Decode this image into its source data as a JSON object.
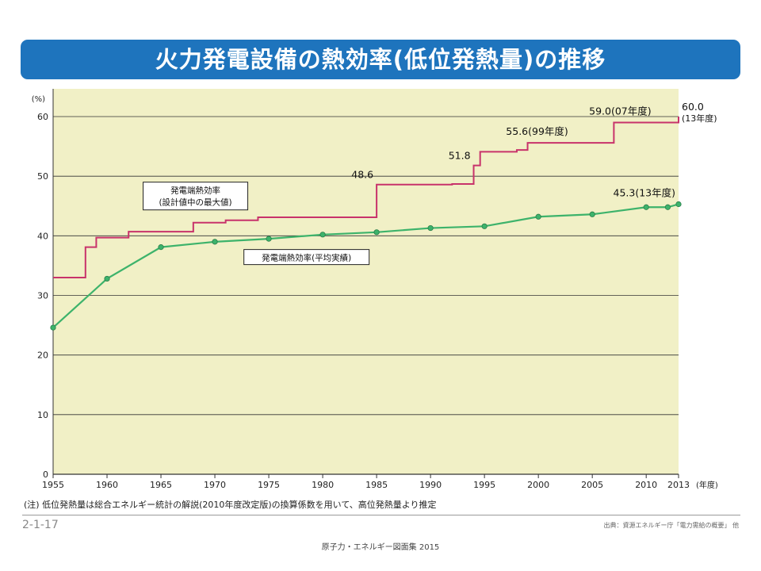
{
  "slide": {
    "title": "火力発電設備の熱効率(低位発熱量)の推移",
    "note": "(注) 低位発熱量は総合エネルギー統計の解説(2010年度改定版)の換算係数を用いて、高位発熱量より推定",
    "page_code": "2-1-17",
    "source": "出典：資源エネルギー庁「電力需給の概要」 他",
    "footer": "原子力・エネルギー図面集 2015"
  },
  "colors": {
    "banner": "#1e74bd",
    "plot_bg": "#f1f0c6",
    "design_line": "#c8336b",
    "actual_line": "#3db36b",
    "grid": "#333333"
  },
  "chart_data": {
    "type": "line",
    "y_unit_label": "(%)",
    "x_unit_label": "(年度)",
    "xlim": [
      1955,
      2013
    ],
    "ylim": [
      0,
      60
    ],
    "x_ticks": [
      1955,
      1960,
      1965,
      1970,
      1975,
      1980,
      1985,
      1990,
      1995,
      2000,
      2005,
      2010,
      2013
    ],
    "y_ticks": [
      0,
      10,
      20,
      30,
      40,
      50,
      60
    ],
    "grid": "horizontal",
    "series": [
      {
        "name": "発電端熱効率(設計値中の最大値)",
        "style": "step",
        "label_lines": [
          "発電端熱効率",
          "(設計値中の最大値)"
        ],
        "points": [
          [
            1955,
            33.0
          ],
          [
            1958,
            33.0
          ],
          [
            1958,
            38.1
          ],
          [
            1959,
            38.1
          ],
          [
            1959,
            39.7
          ],
          [
            1962,
            39.7
          ],
          [
            1962,
            40.7
          ],
          [
            1968,
            40.7
          ],
          [
            1968,
            42.2
          ],
          [
            1971,
            42.2
          ],
          [
            1971,
            42.6
          ],
          [
            1974,
            42.6
          ],
          [
            1974,
            43.1
          ],
          [
            1985,
            43.1
          ],
          [
            1985,
            48.6
          ],
          [
            1992,
            48.6
          ],
          [
            1992,
            48.7
          ],
          [
            1994,
            48.7
          ],
          [
            1994,
            51.8
          ],
          [
            1994.6,
            51.8
          ],
          [
            1994.6,
            54.1
          ],
          [
            1998,
            54.1
          ],
          [
            1998,
            54.4
          ],
          [
            1999,
            54.4
          ],
          [
            1999,
            55.6
          ],
          [
            2007,
            55.6
          ],
          [
            2007,
            59.0
          ],
          [
            2013,
            59.0
          ],
          [
            2013,
            60.0
          ]
        ]
      },
      {
        "name": "発電端熱効率(平均実績)",
        "style": "line-markers",
        "label_lines": [
          "発電端熱効率(平均実績)"
        ],
        "points": [
          [
            1955,
            24.6
          ],
          [
            1960,
            32.8
          ],
          [
            1965,
            38.1
          ],
          [
            1970,
            39.0
          ],
          [
            1975,
            39.5
          ],
          [
            1980,
            40.2
          ],
          [
            1985,
            40.6
          ],
          [
            1990,
            41.3
          ],
          [
            1995,
            41.6
          ],
          [
            2000,
            43.2
          ],
          [
            2005,
            43.6
          ],
          [
            2010,
            44.8
          ],
          [
            2012,
            44.8
          ],
          [
            2013,
            45.3
          ]
        ]
      }
    ],
    "annotations": [
      {
        "text": "48.6",
        "x": 1985,
        "y": 48.6,
        "series": 0
      },
      {
        "text": "51.8",
        "x": 1994,
        "y": 51.8,
        "series": 0
      },
      {
        "text": "55.6(99年度)",
        "x": 1999,
        "y": 55.6,
        "series": 0
      },
      {
        "text": "59.0(07年度)",
        "x": 2007,
        "y": 59.0,
        "series": 0
      },
      {
        "text": "60.0",
        "text2": "(13年度)",
        "x": 2013,
        "y": 60.0,
        "series": 0
      },
      {
        "text": "45.3(13年度)",
        "x": 2013,
        "y": 45.3,
        "series": 1
      }
    ]
  }
}
